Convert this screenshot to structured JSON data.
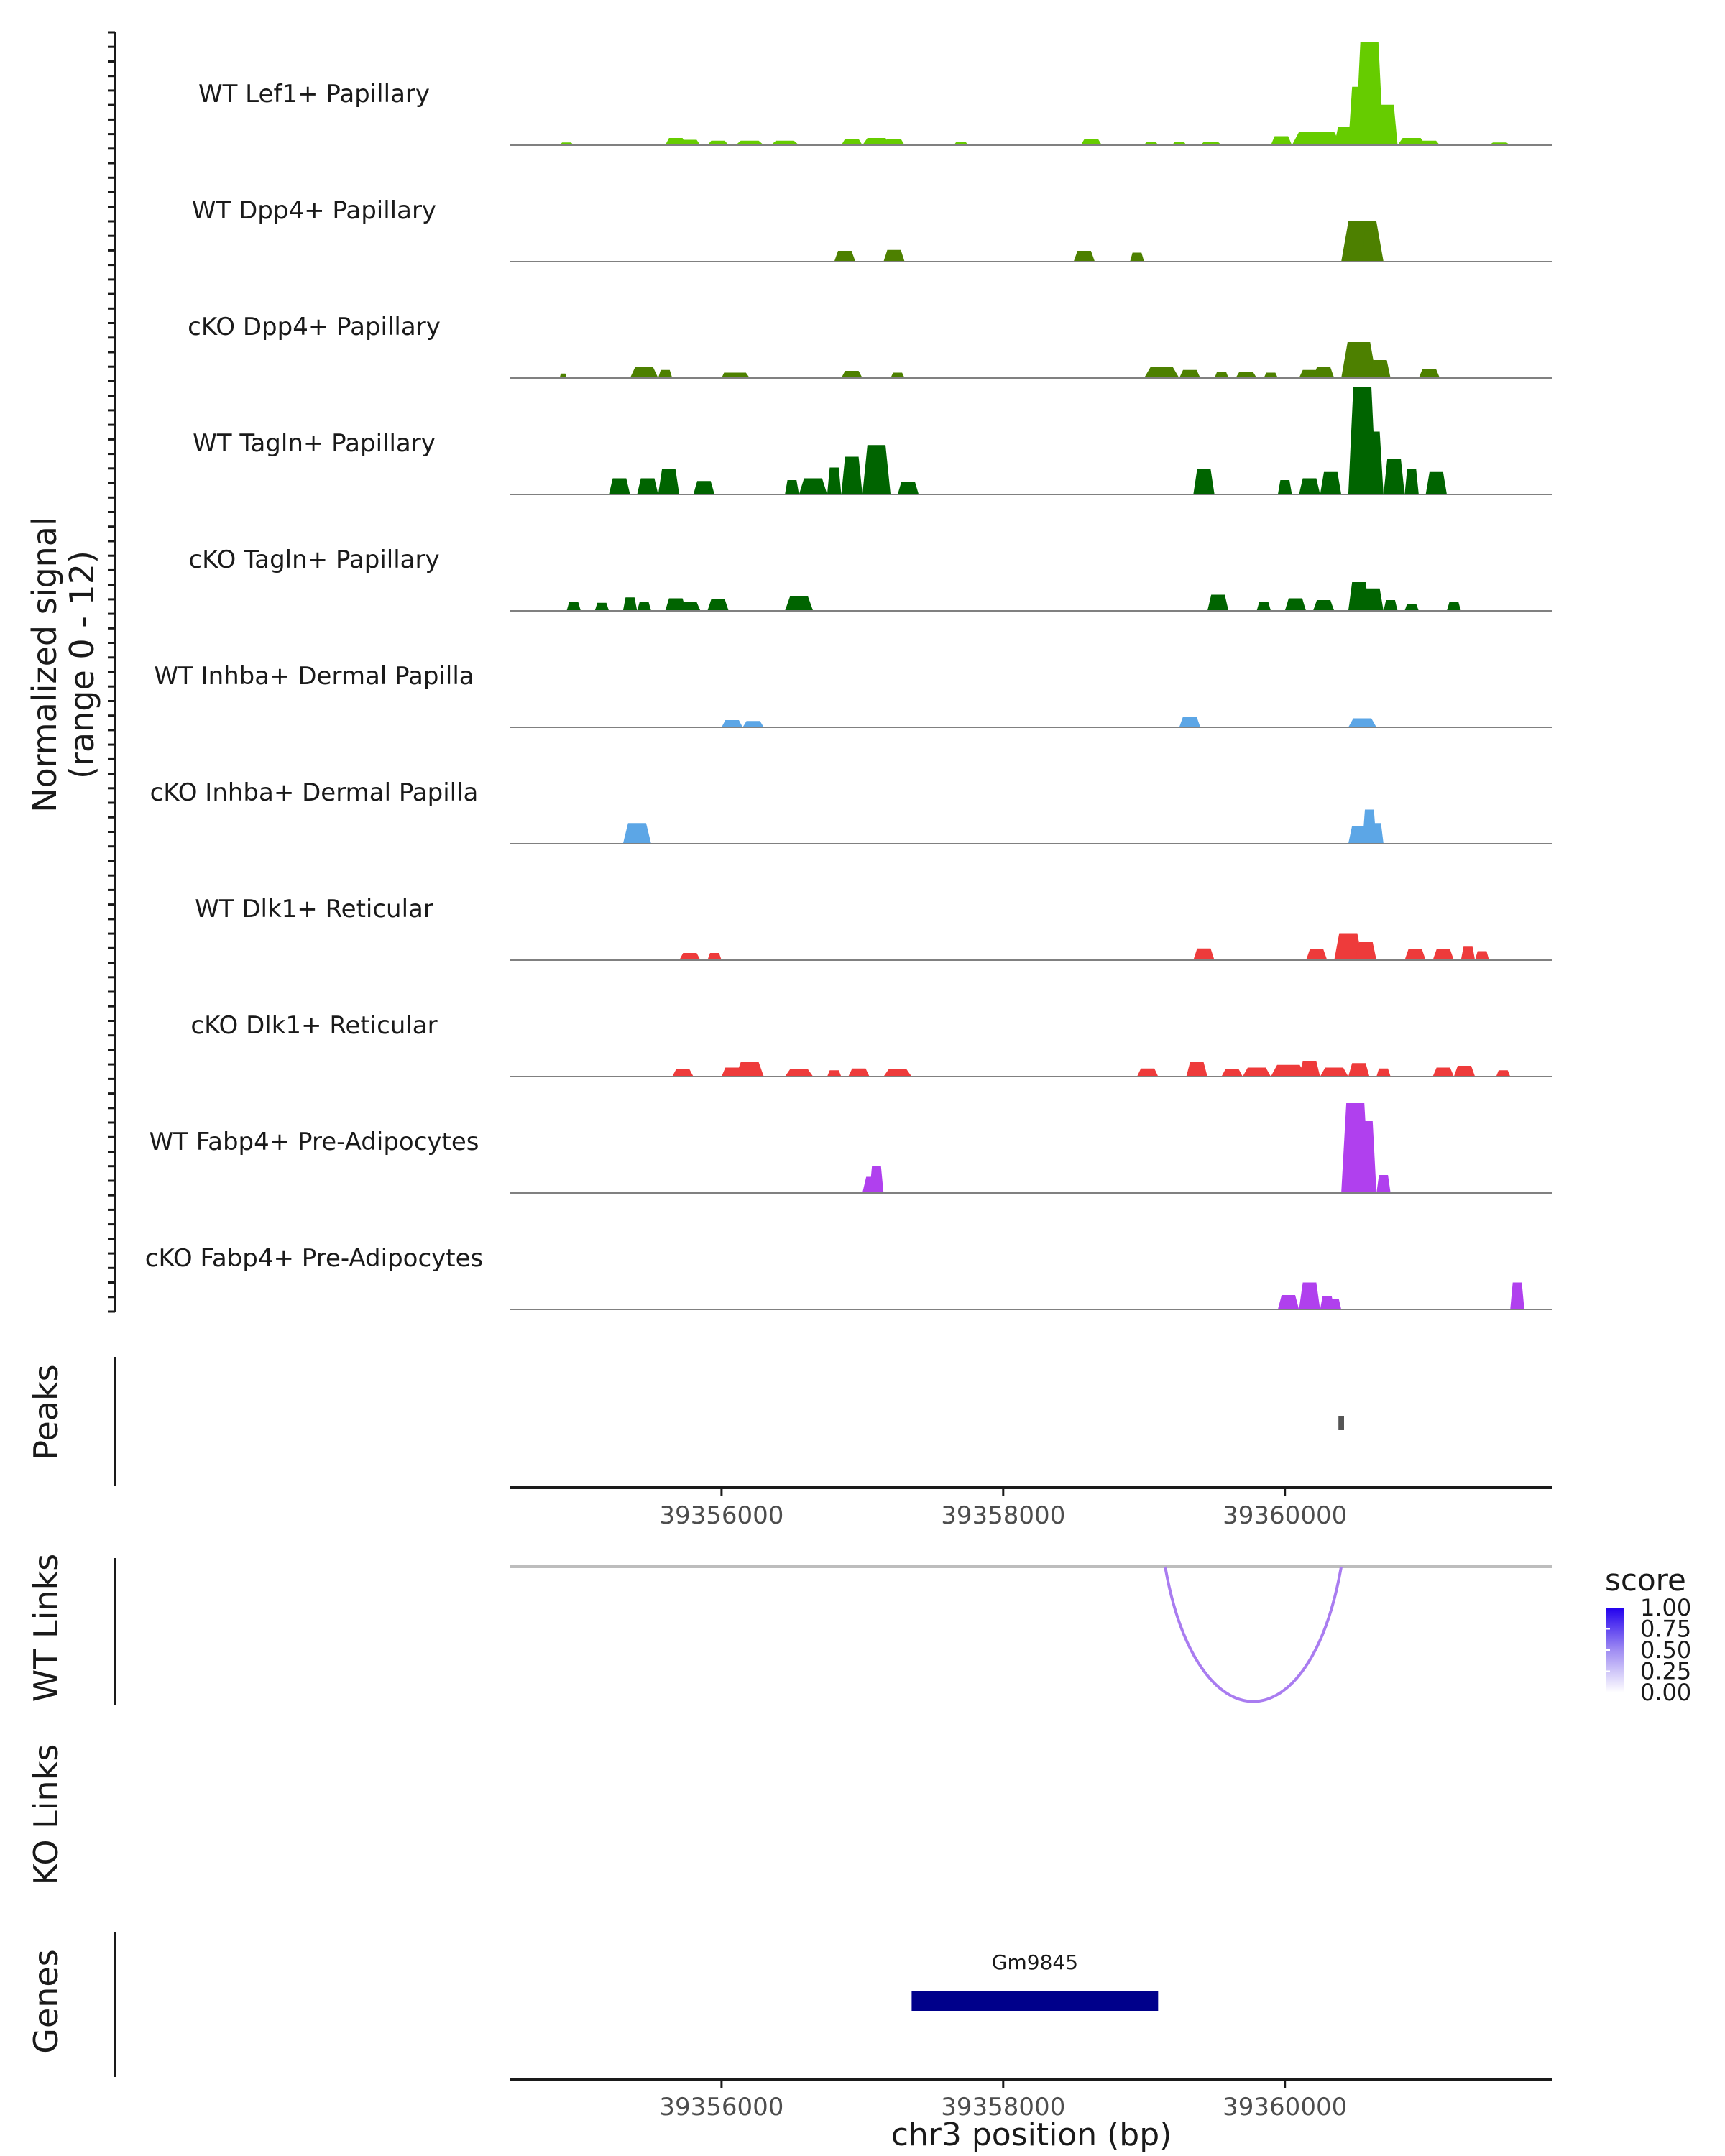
{
  "chart_data": {
    "type": "area",
    "title": "",
    "signal_axis_label": "Normalized signal",
    "signal_range_label": "(range 0 - 12)",
    "signal_range": [
      0,
      12
    ],
    "x_axis_label": "chr3 position (bp)",
    "xlim": [
      39354500,
      39361900
    ],
    "x_ticks": [
      {
        "value": 39356000,
        "label": "39356000"
      },
      {
        "value": 39358000,
        "label": "39358000"
      },
      {
        "value": 39360000,
        "label": "39360000"
      }
    ],
    "tracks": [
      {
        "name": "WT Lef1+ Papillary",
        "color": "#66cc00",
        "peaks": [
          [
            39354850,
            39354950,
            0.3
          ],
          [
            39355600,
            39355750,
            0.8
          ],
          [
            39355700,
            39355850,
            0.6
          ],
          [
            39355900,
            39356050,
            0.5
          ],
          [
            39356100,
            39356300,
            0.5
          ],
          [
            39356350,
            39356550,
            0.5
          ],
          [
            39356850,
            39357000,
            0.7
          ],
          [
            39357000,
            39357200,
            0.8
          ],
          [
            39357150,
            39357300,
            0.7
          ],
          [
            39357650,
            39357750,
            0.4
          ],
          [
            39358550,
            39358700,
            0.7
          ],
          [
            39359000,
            39359100,
            0.4
          ],
          [
            39359200,
            39359300,
            0.4
          ],
          [
            39359400,
            39359550,
            0.4
          ],
          [
            39359900,
            39360050,
            1.0
          ],
          [
            39360050,
            39360400,
            1.5
          ],
          [
            39360350,
            39360500,
            2.0
          ],
          [
            39360450,
            39360600,
            6.5
          ],
          [
            39360500,
            39360700,
            11.5
          ],
          [
            39360650,
            39360800,
            4.5
          ],
          [
            39360800,
            39361000,
            0.8
          ],
          [
            39360950,
            39361100,
            0.5
          ],
          [
            39361450,
            39361600,
            0.3
          ]
        ]
      },
      {
        "name": "WT Dpp4+ Papillary",
        "color": "#4d8000",
        "peaks": [
          [
            39356800,
            39356950,
            1.2
          ],
          [
            39357150,
            39357300,
            1.3
          ],
          [
            39358500,
            39358650,
            1.2
          ],
          [
            39358900,
            39359000,
            1.0
          ],
          [
            39360400,
            39360700,
            4.5
          ],
          [
            39360550,
            39360650,
            3.5
          ]
        ]
      },
      {
        "name": "cKO Dpp4+ Papillary",
        "color": "#4d8000",
        "peaks": [
          [
            39354850,
            39354900,
            0.5
          ],
          [
            39355350,
            39355550,
            1.2
          ],
          [
            39355550,
            39355650,
            0.9
          ],
          [
            39356000,
            39356100,
            0.6
          ],
          [
            39356050,
            39356200,
            0.6
          ],
          [
            39356850,
            39357000,
            0.8
          ],
          [
            39357200,
            39357300,
            0.6
          ],
          [
            39359000,
            39359250,
            1.2
          ],
          [
            39359250,
            39359400,
            0.9
          ],
          [
            39359500,
            39359600,
            0.7
          ],
          [
            39359650,
            39359800,
            0.7
          ],
          [
            39359850,
            39359950,
            0.6
          ],
          [
            39360100,
            39360250,
            0.9
          ],
          [
            39360200,
            39360350,
            1.2
          ],
          [
            39360400,
            39360650,
            4.0
          ],
          [
            39360600,
            39360750,
            2.0
          ],
          [
            39360950,
            39361100,
            1.0
          ]
        ]
      },
      {
        "name": "WT Tagln+ Papillary",
        "color": "#006400",
        "peaks": [
          [
            39355200,
            39355350,
            1.8
          ],
          [
            39355400,
            39355550,
            1.8
          ],
          [
            39355550,
            39355700,
            2.8
          ],
          [
            39355800,
            39355950,
            1.5
          ],
          [
            39356450,
            39356550,
            1.6
          ],
          [
            39356550,
            39356750,
            1.8
          ],
          [
            39356750,
            39356850,
            3.0
          ],
          [
            39356850,
            39357000,
            4.2
          ],
          [
            39357000,
            39357200,
            5.5
          ],
          [
            39357250,
            39357400,
            1.4
          ],
          [
            39359350,
            39359500,
            2.8
          ],
          [
            39359950,
            39360050,
            1.6
          ],
          [
            39360100,
            39360250,
            1.8
          ],
          [
            39360250,
            39360400,
            2.5
          ],
          [
            39360450,
            39360650,
            12.0
          ],
          [
            39360550,
            39360700,
            7.0
          ],
          [
            39360700,
            39360850,
            4.0
          ],
          [
            39360850,
            39360950,
            2.8
          ],
          [
            39361000,
            39361150,
            2.5
          ]
        ]
      },
      {
        "name": "cKO Tagln+ Papillary",
        "color": "#006400",
        "peaks": [
          [
            39354900,
            39355000,
            1.0
          ],
          [
            39355100,
            39355200,
            0.9
          ],
          [
            39355300,
            39355400,
            1.5
          ],
          [
            39355400,
            39355500,
            1.0
          ],
          [
            39355600,
            39355750,
            1.4
          ],
          [
            39355700,
            39355850,
            1.0
          ],
          [
            39355900,
            39356050,
            1.3
          ],
          [
            39356450,
            39356650,
            1.6
          ],
          [
            39359450,
            39359600,
            1.8
          ],
          [
            39359800,
            39359900,
            1.0
          ],
          [
            39360000,
            39360150,
            1.4
          ],
          [
            39360200,
            39360350,
            1.2
          ],
          [
            39360450,
            39360600,
            3.2
          ],
          [
            39360550,
            39360700,
            2.5
          ],
          [
            39360700,
            39360800,
            1.2
          ],
          [
            39360850,
            39360950,
            0.8
          ],
          [
            39361150,
            39361250,
            1.0
          ]
        ]
      },
      {
        "name": "WT Inhba+ Dermal Papilla",
        "color": "#5ca6e6",
        "peaks": [
          [
            39356000,
            39356150,
            0.8
          ],
          [
            39356150,
            39356300,
            0.7
          ],
          [
            39359250,
            39359400,
            1.2
          ],
          [
            39360450,
            39360650,
            1.0
          ]
        ]
      },
      {
        "name": "cKO Inhba+ Dermal Papilla",
        "color": "#5ca6e6",
        "peaks": [
          [
            39355300,
            39355500,
            2.3
          ],
          [
            39360450,
            39360600,
            2.0
          ],
          [
            39360550,
            39360650,
            3.8
          ],
          [
            39360600,
            39360700,
            2.3
          ]
        ]
      },
      {
        "name": "WT Dlk1+ Reticular",
        "color": "#ee3b3b",
        "peaks": [
          [
            39355700,
            39355850,
            0.8
          ],
          [
            39355900,
            39356000,
            0.8
          ],
          [
            39359350,
            39359500,
            1.3
          ],
          [
            39360150,
            39360300,
            1.2
          ],
          [
            39360350,
            39360550,
            3.0
          ],
          [
            39360500,
            39360650,
            2.0
          ],
          [
            39360850,
            39361000,
            1.2
          ],
          [
            39361050,
            39361200,
            1.2
          ],
          [
            39361250,
            39361350,
            1.5
          ],
          [
            39361350,
            39361450,
            1.0
          ]
        ]
      },
      {
        "name": "cKO Dlk1+ Reticular",
        "color": "#ee3b3b",
        "peaks": [
          [
            39355650,
            39355800,
            0.8
          ],
          [
            39356000,
            39356150,
            1.0
          ],
          [
            39356100,
            39356300,
            1.6
          ],
          [
            39356450,
            39356650,
            0.8
          ],
          [
            39356750,
            39356850,
            0.7
          ],
          [
            39356900,
            39357050,
            0.9
          ],
          [
            39357150,
            39357350,
            0.8
          ],
          [
            39358950,
            39359100,
            0.9
          ],
          [
            39359300,
            39359450,
            1.6
          ],
          [
            39359550,
            39359700,
            0.8
          ],
          [
            39359700,
            39359900,
            1.0
          ],
          [
            39359900,
            39360150,
            1.3
          ],
          [
            39360100,
            39360250,
            1.7
          ],
          [
            39360250,
            39360450,
            1.0
          ],
          [
            39360450,
            39360600,
            1.5
          ],
          [
            39360650,
            39360750,
            0.9
          ],
          [
            39361050,
            39361200,
            1.0
          ],
          [
            39361200,
            39361350,
            1.2
          ],
          [
            39361500,
            39361600,
            0.7
          ]
        ]
      },
      {
        "name": "WT Fabp4+ Pre-Adipocytes",
        "color": "#b040ee",
        "peaks": [
          [
            39357000,
            39357150,
            1.8
          ],
          [
            39357050,
            39357150,
            3.0
          ],
          [
            39360400,
            39360600,
            10.0
          ],
          [
            39360500,
            39360650,
            8.0
          ],
          [
            39360650,
            39360750,
            2.0
          ]
        ]
      },
      {
        "name": "cKO Fabp4+ Pre-Adipocytes",
        "color": "#b040ee",
        "peaks": [
          [
            39359950,
            39360100,
            1.6
          ],
          [
            39360100,
            39360250,
            3.0
          ],
          [
            39360250,
            39360350,
            1.5
          ],
          [
            39360300,
            39360400,
            1.2
          ],
          [
            39361600,
            39361700,
            3.0
          ]
        ]
      }
    ],
    "peaks_track": {
      "label": "Peaks",
      "regions": [
        [
          39360380,
          39360420
        ]
      ]
    },
    "wt_links": {
      "label": "WT Links",
      "links": [
        [
          39359150,
          39360400,
          0.55
        ]
      ]
    },
    "ko_links": {
      "label": "KO Links",
      "links": []
    },
    "genes": {
      "label": "Genes",
      "items": [
        {
          "name": "Gm9845",
          "start": 39357350,
          "end": 39359100
        }
      ]
    },
    "score_legend": {
      "title": "score",
      "ticks": [
        "0.00",
        "0.25",
        "0.50",
        "0.75",
        "1.00"
      ]
    }
  }
}
